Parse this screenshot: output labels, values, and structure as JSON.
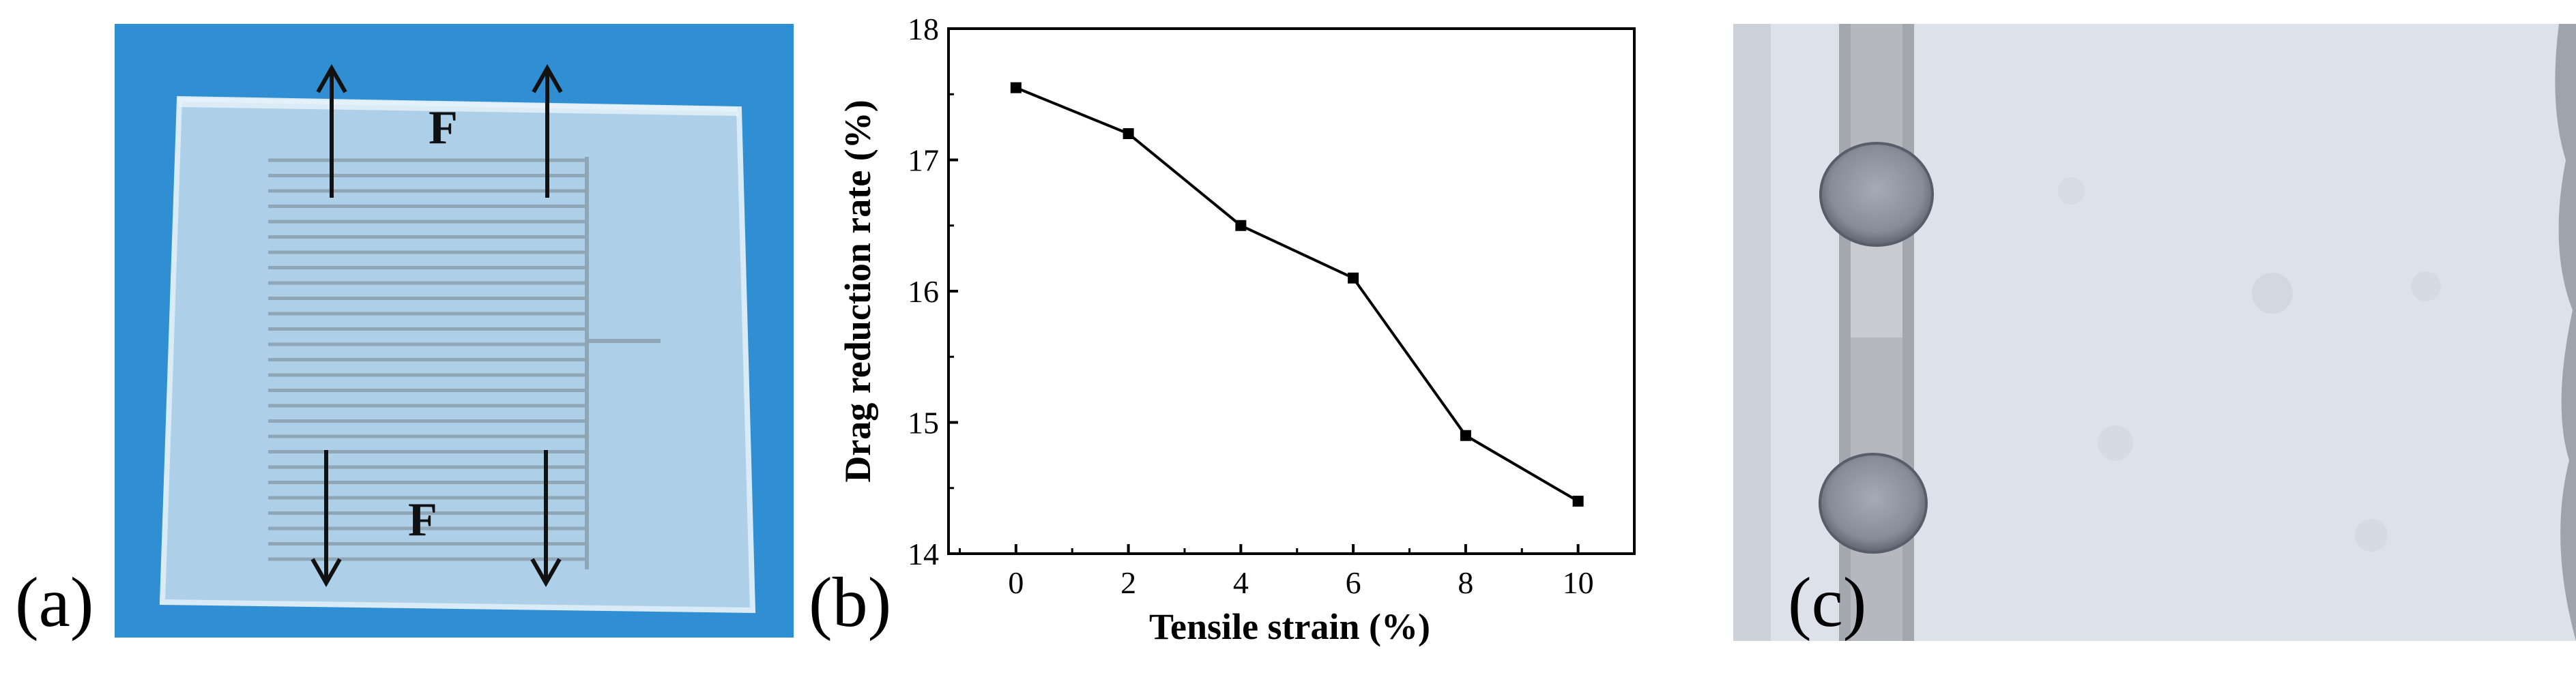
{
  "panels": {
    "a": {
      "label": "(a)",
      "force_label": "F"
    },
    "b": {
      "label": "(b)"
    },
    "c": {
      "label": "(c)"
    }
  },
  "colors": {
    "background_blue": "#2f8fd2",
    "plate": "#b8d6ea",
    "micro_bg": "#dde1e9",
    "line": "#000000"
  },
  "chart_data": {
    "type": "line",
    "x": [
      0,
      2,
      4,
      6,
      8,
      10
    ],
    "series": [
      {
        "values": [
          17.55,
          17.2,
          16.5,
          16.1,
          14.9,
          14.4
        ]
      }
    ],
    "xlabel": "Tensile strain (%)",
    "ylabel": "Drag reduction rate (%)",
    "xlim": [
      -1.2,
      11.0
    ],
    "ylim": [
      14,
      18
    ],
    "xticks": [
      "0",
      "2",
      "4",
      "6",
      "8",
      "10"
    ],
    "yticks": [
      "14",
      "15",
      "16",
      "17",
      "18"
    ],
    "marker": "square",
    "grid": false
  }
}
